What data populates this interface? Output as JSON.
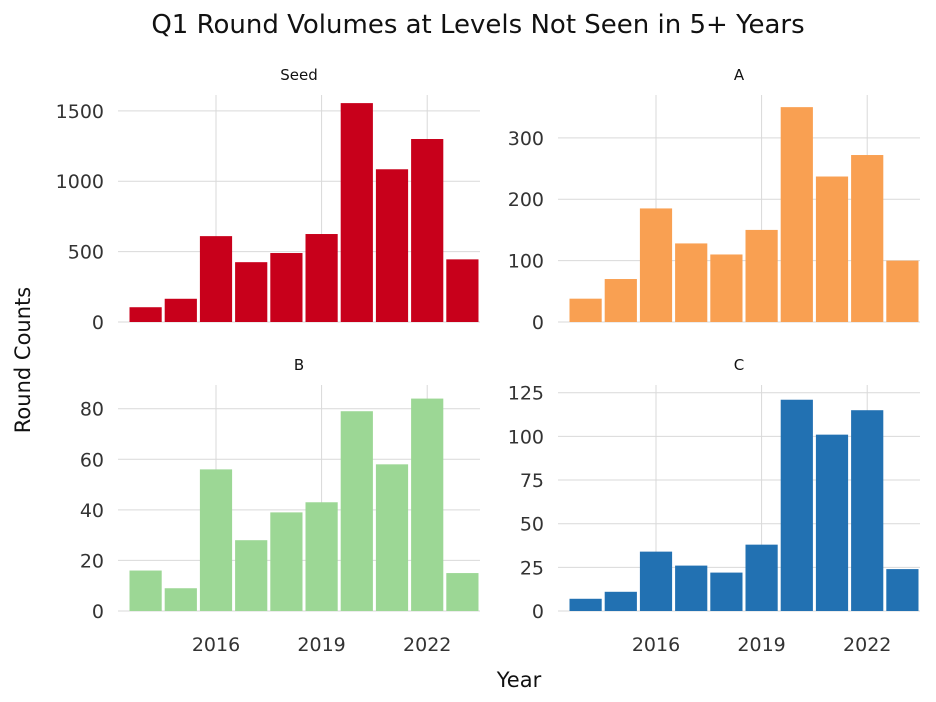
{
  "chart_data": {
    "type": "bar",
    "title": "Q1 Round Volumes at Levels Not Seen in 5+ Years",
    "xlabel": "Year",
    "ylabel": "Round Counts",
    "x": [
      2014,
      2015,
      2016,
      2017,
      2018,
      2019,
      2020,
      2021,
      2022,
      2023
    ],
    "x_ticks": [
      2016,
      2019,
      2022
    ],
    "facets": [
      {
        "name": "Seed",
        "color": "#c8001b",
        "values": [
          105,
          165,
          610,
          425,
          490,
          625,
          1555,
          1085,
          1300,
          445
        ],
        "ylim": [
          0,
          1570
        ],
        "y_ticks": [
          0,
          500,
          1000,
          1500
        ]
      },
      {
        "name": "A",
        "color": "#f9a052",
        "values": [
          38,
          70,
          185,
          128,
          110,
          150,
          350,
          237,
          272,
          100
        ],
        "ylim": [
          0,
          360
        ],
        "y_ticks": [
          0,
          100,
          200,
          300
        ]
      },
      {
        "name": "B",
        "color": "#9cd795",
        "values": [
          16,
          9,
          56,
          28,
          39,
          43,
          79,
          58,
          84,
          15
        ],
        "ylim": [
          0,
          87
        ],
        "y_ticks": [
          0,
          20,
          40,
          60,
          80
        ]
      },
      {
        "name": "C",
        "color": "#2271b2",
        "values": [
          7,
          11,
          34,
          26,
          22,
          38,
          121,
          101,
          115,
          24
        ],
        "ylim": [
          0,
          126
        ],
        "y_ticks": [
          0,
          25,
          50,
          75,
          100,
          125
        ]
      }
    ]
  }
}
